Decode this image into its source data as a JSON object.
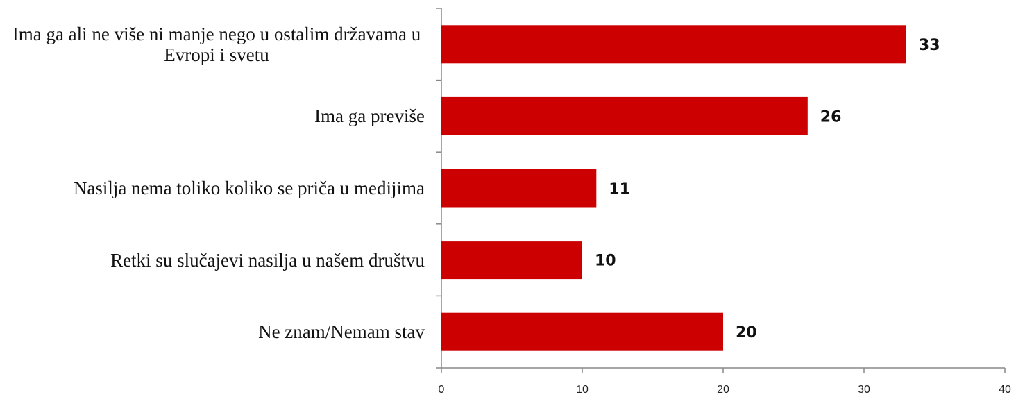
{
  "chart_data": {
    "type": "bar",
    "orientation": "horizontal",
    "categories": [
      "Ima ga ali ne više ni manje nego u ostalim državama u Evropi i svetu",
      "Ima ga previše",
      "Nasilja nema toliko koliko se priča u medijima",
      "Retki su slučajevi nasilja u našem društvu",
      "Ne znam/Nemam stav"
    ],
    "values": [
      33,
      26,
      11,
      10,
      20
    ],
    "color": "#cc0000",
    "xlim": [
      0,
      40
    ],
    "xticks": [
      0,
      10,
      20,
      30,
      40
    ],
    "grid": false
  }
}
